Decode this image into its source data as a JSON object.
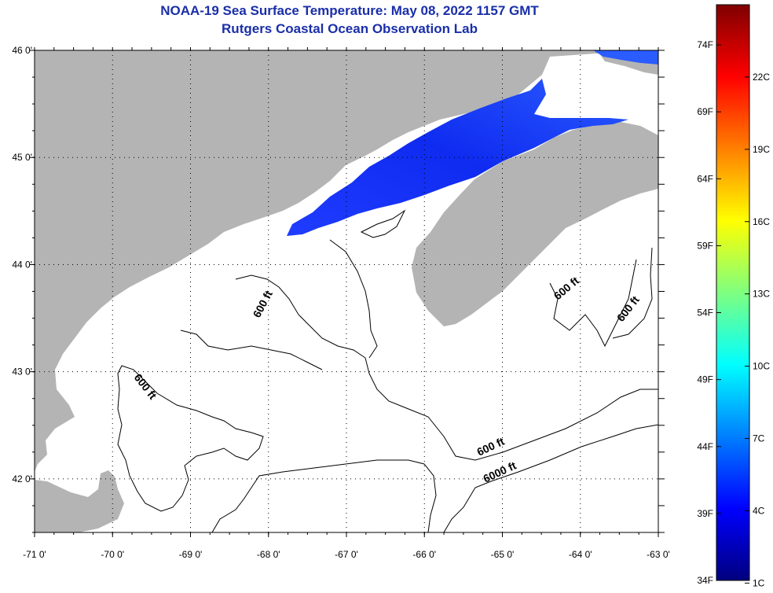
{
  "title_line1": "NOAA-19 Sea Surface Temperature:  May 08, 2022 1157 GMT",
  "title_line2": "Rutgers Coastal Ocean Observation Lab",
  "map": {
    "lon_labels": [
      "-71 0'",
      "-70 0'",
      "-69 0'",
      "-68 0'",
      "-67 0'",
      "-66 0'",
      "-65 0'",
      "-64 0'",
      "-63 0'"
    ],
    "lat_labels": [
      "46 0'",
      "45 0'",
      "44 0'",
      "43 0'",
      "42 0'"
    ],
    "lon_range": [
      -71,
      -63
    ],
    "lat_range": [
      41.5,
      46
    ],
    "land_color": "#b4b4b4",
    "contours": [
      {
        "label": "600 ft"
      },
      {
        "label": "600 ft"
      },
      {
        "label": "600 ft"
      },
      {
        "label": "600 ft"
      },
      {
        "label": "600 ft"
      },
      {
        "label": "6000 ft"
      }
    ]
  },
  "colorbar": {
    "fahrenheit_labels": [
      "74F",
      "69F",
      "64F",
      "59F",
      "54F",
      "49F",
      "44F",
      "39F",
      "34F"
    ],
    "celsius_labels": [
      "22C",
      "19C",
      "16C",
      "13C",
      "10C",
      "7C",
      "4C",
      "1C"
    ],
    "colors": [
      "#00007f",
      "#0000ff",
      "#007fff",
      "#00ffff",
      "#7fff7f",
      "#ffff00",
      "#ff7f00",
      "#ff0000",
      "#7f0000"
    ]
  }
}
